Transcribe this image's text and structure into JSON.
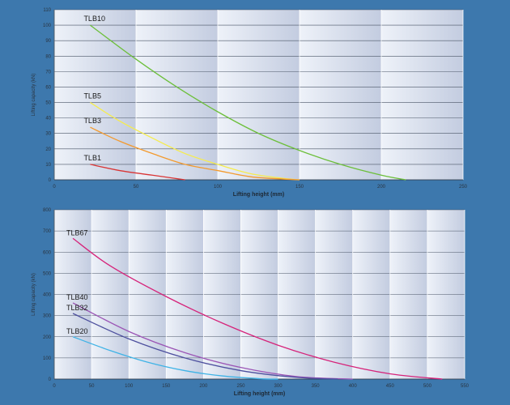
{
  "chart_data": [
    {
      "type": "line",
      "xlabel": "Lifting height (mm)",
      "ylabel": "Lifting capacity (kN)",
      "xlim": [
        0,
        250
      ],
      "ylim": [
        0,
        110
      ],
      "xticks": [
        0,
        50,
        100,
        150,
        200,
        250
      ],
      "yticks": [
        0,
        10,
        20,
        30,
        40,
        50,
        60,
        70,
        80,
        90,
        100,
        110
      ],
      "grid": true,
      "legend": "none",
      "series": [
        {
          "name": "TLB10",
          "color": "#6cbf3a",
          "x": [
            22,
            50,
            75,
            100,
            125,
            150,
            175,
            200,
            215
          ],
          "y": [
            100,
            78,
            60,
            44,
            30,
            19,
            10,
            3,
            0
          ]
        },
        {
          "name": "TLB5",
          "color": "#f6ec4c",
          "x": [
            22,
            40,
            60,
            80,
            100,
            120,
            140,
            150
          ],
          "y": [
            50,
            38,
            27,
            17,
            10,
            4,
            1,
            0
          ]
        },
        {
          "name": "TLB3",
          "color": "#f39a2e",
          "x": [
            22,
            40,
            60,
            80,
            100,
            120,
            140,
            150
          ],
          "y": [
            34,
            25,
            17,
            10,
            6,
            2,
            0.5,
            0
          ]
        },
        {
          "name": "TLB1",
          "color": "#d93535",
          "x": [
            22,
            40,
            60,
            80
          ],
          "y": [
            10,
            6,
            3,
            0
          ]
        }
      ]
    },
    {
      "type": "line",
      "xlabel": "Lifting height (mm)",
      "ylabel": "Lifting capacity (kN)",
      "xlim": [
        0,
        550
      ],
      "ylim": [
        0,
        800
      ],
      "xticks": [
        0,
        50,
        100,
        150,
        200,
        250,
        300,
        350,
        400,
        450,
        500,
        550
      ],
      "yticks": [
        0,
        100,
        200,
        300,
        400,
        500,
        600,
        700,
        800
      ],
      "grid": true,
      "legend": "none",
      "series": [
        {
          "name": "TLB67",
          "color": "#d6237a",
          "x": [
            25,
            75,
            150,
            225,
            300,
            375,
            450,
            520
          ],
          "y": [
            665,
            535,
            390,
            265,
            160,
            80,
            25,
            0
          ]
        },
        {
          "name": "TLB40",
          "color": "#9b55b5",
          "x": [
            25,
            100,
            175,
            250,
            325,
            400
          ],
          "y": [
            360,
            225,
            125,
            55,
            12,
            0
          ]
        },
        {
          "name": "TLB32",
          "color": "#4d4f9e",
          "x": [
            25,
            100,
            175,
            250,
            325,
            380
          ],
          "y": [
            310,
            190,
            100,
            40,
            8,
            0
          ]
        },
        {
          "name": "TLB20",
          "color": "#3fb3e6",
          "x": [
            25,
            75,
            125,
            175,
            225,
            275,
            300
          ],
          "y": [
            200,
            135,
            80,
            40,
            15,
            2,
            0
          ]
        }
      ]
    }
  ]
}
